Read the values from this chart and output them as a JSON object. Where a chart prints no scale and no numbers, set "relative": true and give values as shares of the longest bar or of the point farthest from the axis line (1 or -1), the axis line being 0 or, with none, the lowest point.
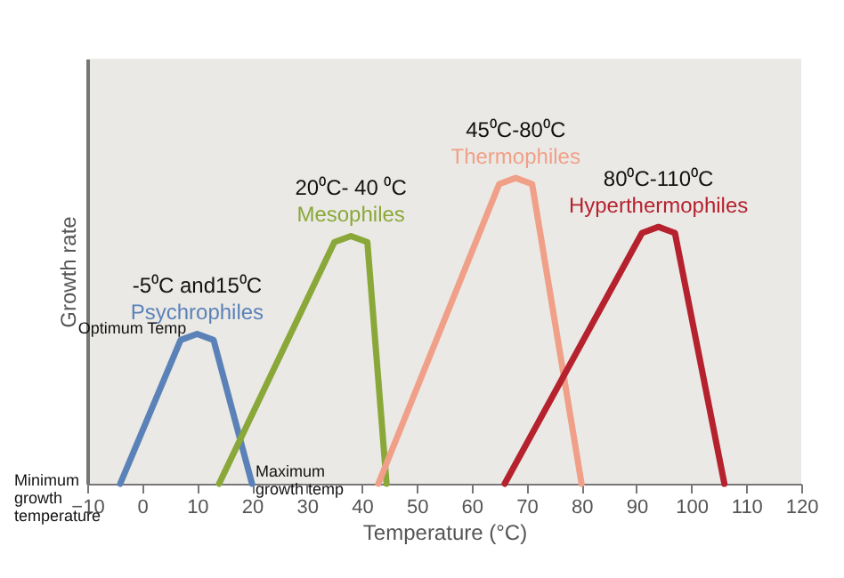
{
  "chart_data": {
    "type": "line",
    "relative": true,
    "xlabel": "Temperature (°C)",
    "ylabel": "Growth rate",
    "xlim": [
      -10,
      120
    ],
    "xticks": [
      -10,
      0,
      10,
      20,
      30,
      40,
      50,
      60,
      70,
      80,
      90,
      100,
      110,
      120
    ],
    "grid": false,
    "series": [
      {
        "name": "Psychrophiles",
        "color": "#5b82b8",
        "x": [
          -4,
          7,
          10,
          13,
          20
        ],
        "values": [
          0,
          0.47,
          0.49,
          0.47,
          0
        ]
      },
      {
        "name": "Mesophiles",
        "color": "#8aa83a",
        "x": [
          14,
          35,
          38,
          41,
          44.5
        ],
        "values": [
          0,
          0.79,
          0.81,
          0.79,
          0
        ]
      },
      {
        "name": "Thermophiles",
        "color": "#f0a088",
        "x": [
          43,
          65,
          68,
          71,
          80
        ],
        "values": [
          0,
          0.98,
          1,
          0.98,
          0
        ]
      },
      {
        "name": "Hyperthermophiles",
        "color": "#b5222e",
        "x": [
          66,
          91,
          94,
          97,
          106
        ],
        "values": [
          0,
          0.82,
          0.84,
          0.82,
          0
        ]
      }
    ],
    "annotations": [
      {
        "text": "-5⁰C and15⁰C",
        "x": 10,
        "y": 0.49
      },
      {
        "text": "20⁰C- 40 ⁰C",
        "x": 38,
        "y": 0.81
      },
      {
        "text": "45⁰C-80⁰C",
        "x": 68,
        "y": 1
      },
      {
        "text": "80⁰C-110⁰C",
        "x": 94,
        "y": 0.84
      },
      {
        "text": "Optimum Temp",
        "x": 10,
        "y": 0.49
      },
      {
        "text": "Maximum growth temp",
        "x": 20,
        "y": 0
      },
      "Minimum growth temperature"
    ]
  }
}
